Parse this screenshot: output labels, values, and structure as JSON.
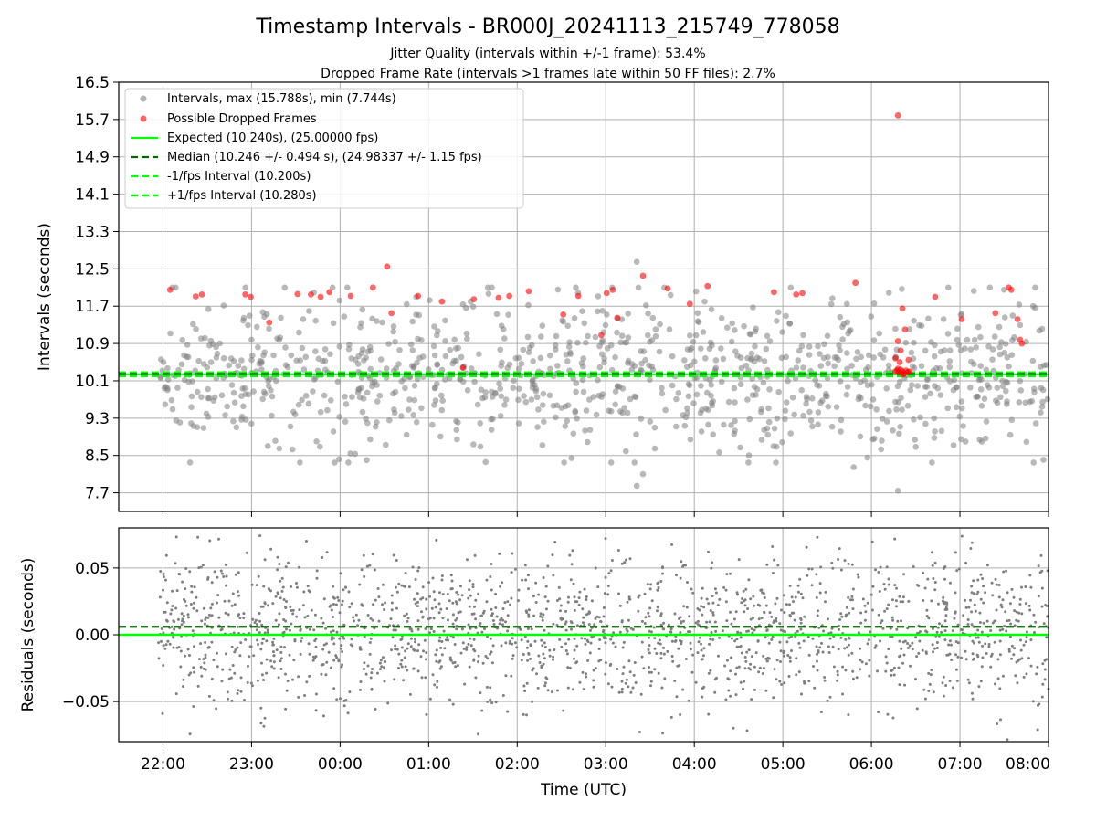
{
  "figure": {
    "title": "Timestamp Intervals - BR000J_20241113_215749_778058",
    "subtitle_1": "Jitter Quality (intervals within +/-1 frame): 53.4%",
    "subtitle_2": "Dropped Frame Rate (intervals >1 frames late within 50 FF files): 2.7%",
    "xlabel": "Time (UTC)"
  },
  "chart_data": [
    {
      "type": "scatter",
      "panel": "intervals",
      "ylabel": "Intervals (seconds)",
      "ylim": [
        7.3,
        16.5
      ],
      "yticks": [
        "7.7",
        "8.5",
        "9.3",
        "10.1",
        "10.9",
        "11.7",
        "12.5",
        "13.3",
        "14.1",
        "14.9",
        "15.7",
        "16.5"
      ],
      "ytick_values": [
        7.7,
        8.5,
        9.3,
        10.1,
        10.9,
        11.7,
        12.5,
        13.3,
        14.1,
        14.9,
        15.7,
        16.5
      ],
      "x_range_hours": [
        -2.5,
        8.0
      ],
      "xticks": [
        "22:00",
        "23:00",
        "00:00",
        "01:00",
        "02:00",
        "03:00",
        "04:00",
        "05:00",
        "06:00",
        "07:00",
        "08:00"
      ],
      "xtick_values": [
        -2,
        -1,
        0,
        1,
        2,
        3,
        4,
        5,
        6,
        7,
        8
      ],
      "grid": true,
      "legend_position": "top-left",
      "legend": [
        {
          "label": "Intervals, max (15.788s), min (7.744s)",
          "kind": "marker",
          "color": "#808080"
        },
        {
          "label": "Possible Dropped Frames",
          "kind": "marker",
          "color": "#ff0000"
        },
        {
          "label": "Expected (10.240s), (25.00000 fps)",
          "kind": "line",
          "color": "#00ff00"
        },
        {
          "label": "Median (10.246 +/- 0.494 s), (24.98337 +/- 1.15 fps)",
          "kind": "dash",
          "color": "#006400"
        },
        {
          "label": "-1/fps Interval (10.200s)",
          "kind": "dash",
          "color": "#00ff00"
        },
        {
          "label": "+1/fps Interval (10.280s)",
          "kind": "dash",
          "color": "#00ff00"
        }
      ],
      "reference_lines": {
        "expected": 10.24,
        "median": 10.246,
        "minus_one_frame": 10.2,
        "plus_one_frame": 10.28
      },
      "series": [
        {
          "name": "Intervals, max (15.788s), min (7.744s)",
          "color": "#808080",
          "count": 1040,
          "min": 7.744,
          "max": 15.788,
          "median": 10.246,
          "spread_sd": 0.85
        },
        {
          "name": "Possible Dropped Frames",
          "color": "#ff0000",
          "points": [
            [
              -1.92,
              12.05
            ],
            [
              -1.63,
              11.91
            ],
            [
              -1.56,
              11.95
            ],
            [
              -1.07,
              11.95
            ],
            [
              -1.01,
              11.9
            ],
            [
              -0.8,
              11.35
            ],
            [
              -0.48,
              11.96
            ],
            [
              -0.33,
              11.95
            ],
            [
              -0.22,
              11.9
            ],
            [
              -0.12,
              12.0
            ],
            [
              0.12,
              11.92
            ],
            [
              0.37,
              12.1
            ],
            [
              0.53,
              12.55
            ],
            [
              0.58,
              11.55
            ],
            [
              0.88,
              11.92
            ],
            [
              1.15,
              11.8
            ],
            [
              1.39,
              10.38
            ],
            [
              1.51,
              11.85
            ],
            [
              1.79,
              11.88
            ],
            [
              1.91,
              11.92
            ],
            [
              2.13,
              12.02
            ],
            [
              2.52,
              11.52
            ],
            [
              2.69,
              11.92
            ],
            [
              2.95,
              11.08
            ],
            [
              3.01,
              11.98
            ],
            [
              3.08,
              12.05
            ],
            [
              3.13,
              11.45
            ],
            [
              3.42,
              12.35
            ],
            [
              3.7,
              12.08
            ],
            [
              3.95,
              11.75
            ],
            [
              4.15,
              12.13
            ],
            [
              4.9,
              12.0
            ],
            [
              5.15,
              11.95
            ],
            [
              5.22,
              11.98
            ],
            [
              5.82,
              12.2
            ],
            [
              6.3,
              15.788
            ],
            [
              6.3,
              10.95
            ],
            [
              6.27,
              10.58
            ],
            [
              6.32,
              10.5
            ],
            [
              6.35,
              11.65
            ],
            [
              6.38,
              11.2
            ],
            [
              6.33,
              10.75
            ],
            [
              6.42,
              10.55
            ],
            [
              6.72,
              11.9
            ],
            [
              7.02,
              11.42
            ],
            [
              7.4,
              11.55
            ],
            [
              7.55,
              12.1
            ],
            [
              7.58,
              12.05
            ],
            [
              7.65,
              11.42
            ],
            [
              7.68,
              10.98
            ],
            [
              7.7,
              10.9
            ],
            [
              6.27,
              10.3
            ],
            [
              6.29,
              10.32
            ],
            [
              6.31,
              10.28
            ],
            [
              6.33,
              10.34
            ],
            [
              6.35,
              10.3
            ],
            [
              6.37,
              10.26
            ],
            [
              6.39,
              10.32
            ],
            [
              6.41,
              10.29
            ],
            [
              6.43,
              10.3
            ],
            [
              6.3,
              10.36
            ],
            [
              6.36,
              10.24
            ]
          ]
        }
      ]
    },
    {
      "type": "scatter",
      "panel": "residuals",
      "ylabel": "Residuals (seconds)",
      "ylim": [
        -0.08,
        0.08
      ],
      "yticks": [
        "−0.05",
        "0.00",
        "0.05"
      ],
      "ytick_values": [
        -0.05,
        0.0,
        0.05
      ],
      "x_range_hours": [
        -2.5,
        8.0
      ],
      "xticks": [
        "22:00",
        "23:00",
        "00:00",
        "01:00",
        "02:00",
        "03:00",
        "04:00",
        "05:00",
        "06:00",
        "07:00",
        "08:00"
      ],
      "xtick_values": [
        -2,
        -1,
        0,
        1,
        2,
        3,
        4,
        5,
        6,
        7,
        8
      ],
      "grid": true,
      "reference_lines": {
        "zero": 0.0,
        "median_offset": 0.006
      },
      "series": [
        {
          "name": "",
          "color": "#7f7f7f",
          "count": 1900,
          "spread_sd": 0.028
        }
      ]
    }
  ]
}
